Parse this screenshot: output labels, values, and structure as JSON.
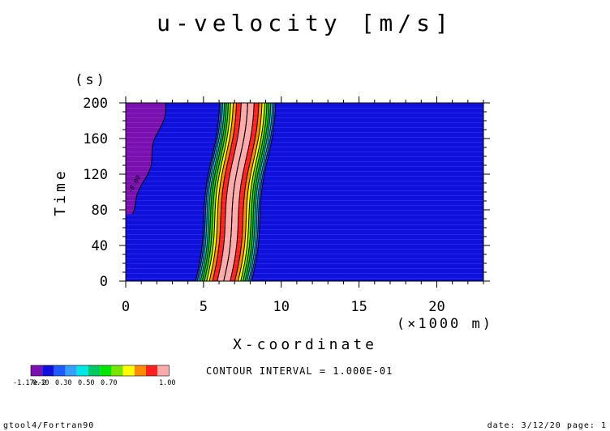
{
  "chart_data": {
    "type": "heatmap",
    "title": "u-velocity [m/s]",
    "xlabel": "X-coordinate",
    "x_unit": "(×1000 m)",
    "ylabel": "Time",
    "y_unit": "(s)",
    "xlim": [
      0,
      23
    ],
    "ylim": [
      0,
      200
    ],
    "x_ticks": [
      "0",
      "5",
      "10",
      "15",
      "20"
    ],
    "x_tick_values": [
      0,
      5,
      10,
      15,
      20
    ],
    "y_ticks": [
      "0",
      "40",
      "80",
      "120",
      "160",
      "200"
    ],
    "y_tick_values": [
      0,
      40,
      80,
      120,
      160,
      200
    ],
    "contour_label": "-0.00",
    "contour_interval": "CONTOUR INTERVAL = 1.000E-01",
    "colorbar": {
      "labels": [
        "-1.17e-2",
        "0.10",
        "0.30",
        "0.50",
        "0.70",
        "1.00"
      ],
      "colors": [
        "#7a10b0",
        "#1010dd",
        "#1f5cff",
        "#36a0ff",
        "#00e6e6",
        "#00c864",
        "#00e600",
        "#78e600",
        "#ffff00",
        "#ff8c00",
        "#ff2020",
        "#ffaaaa"
      ]
    },
    "band_levels": [
      0,
      0.05,
      0.15,
      0.25,
      0.35,
      0.45,
      0.55,
      0.65,
      0.75,
      0.85,
      0.95,
      1.0
    ],
    "band_colors": [
      "#1010dd",
      "#1f5cff",
      "#36a0ff",
      "#00e6e6",
      "#00c864",
      "#00e600",
      "#78e600",
      "#ffff00",
      "#ff8c00",
      "#ff2020",
      "#ffaaaa"
    ],
    "pulse_center_x": [
      6.3,
      7.8
    ],
    "pulse_width_x": 1.85,
    "negative_region_x_end": [
      0.3,
      2.6
    ]
  },
  "footer": {
    "left": "gtool4/Fortran90",
    "right": "date: 3/12/20 page: 1"
  }
}
